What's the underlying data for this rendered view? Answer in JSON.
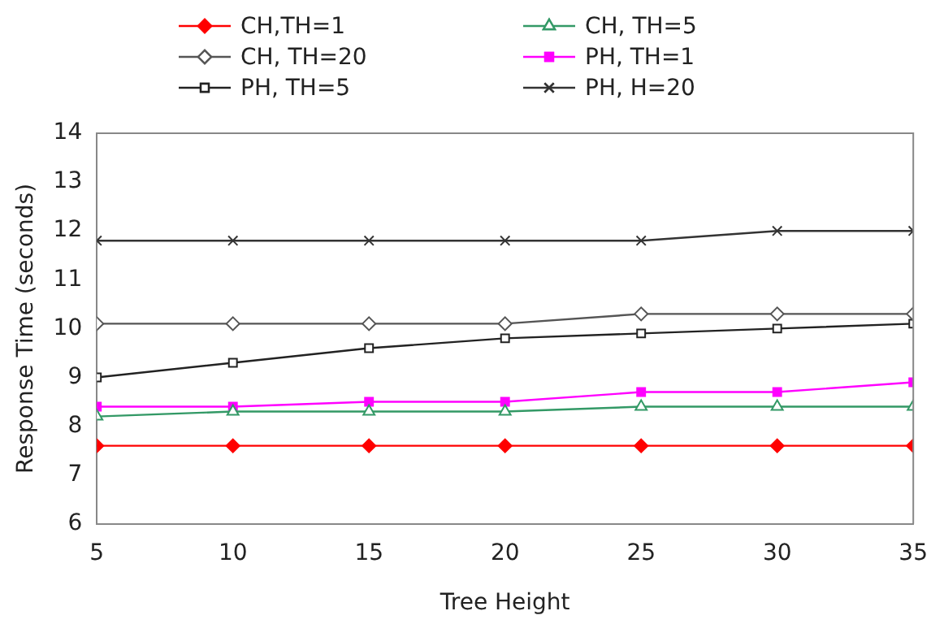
{
  "chart_data": {
    "type": "line",
    "xlabel": "Tree Height",
    "ylabel": "Response Time (seconds)",
    "x": [
      5,
      10,
      15,
      20,
      25,
      30,
      35
    ],
    "xlim": [
      5,
      35
    ],
    "xticks": [
      5,
      10,
      15,
      20,
      25,
      30,
      35
    ],
    "ylim": [
      6,
      14
    ],
    "yticks": [
      6,
      7,
      8,
      9,
      10,
      11,
      12,
      13,
      14
    ],
    "grid": false,
    "legend": "top",
    "line_style": "solid",
    "series": [
      {
        "name": "CH,TH=1",
        "color": "#ff0000",
        "marker": "diamond",
        "values": [
          7.6,
          7.6,
          7.6,
          7.6,
          7.6,
          7.6,
          7.6
        ]
      },
      {
        "name": "CH, TH=5",
        "color": "#339966",
        "marker": "triangle",
        "values": [
          8.2,
          8.3,
          8.3,
          8.3,
          8.4,
          8.4,
          8.4
        ]
      },
      {
        "name": "CH, TH=20",
        "color": "#555555",
        "marker": "diamond",
        "values": [
          10.1,
          10.1,
          10.1,
          10.1,
          10.3,
          10.3,
          10.3
        ]
      },
      {
        "name": "PH, TH=1",
        "color": "#ff00ff",
        "marker": "square",
        "values": [
          8.4,
          8.4,
          8.5,
          8.5,
          8.7,
          8.7,
          8.9
        ]
      },
      {
        "name": "PH, TH=5",
        "color": "#222222",
        "marker": "square",
        "values": [
          9.0,
          9.3,
          9.6,
          9.8,
          9.9,
          10.0,
          10.1
        ]
      },
      {
        "name": "PH, H=20",
        "color": "#333333",
        "marker": "cross",
        "values": [
          11.8,
          11.8,
          11.8,
          11.8,
          11.8,
          12.0,
          12.0
        ]
      }
    ]
  }
}
